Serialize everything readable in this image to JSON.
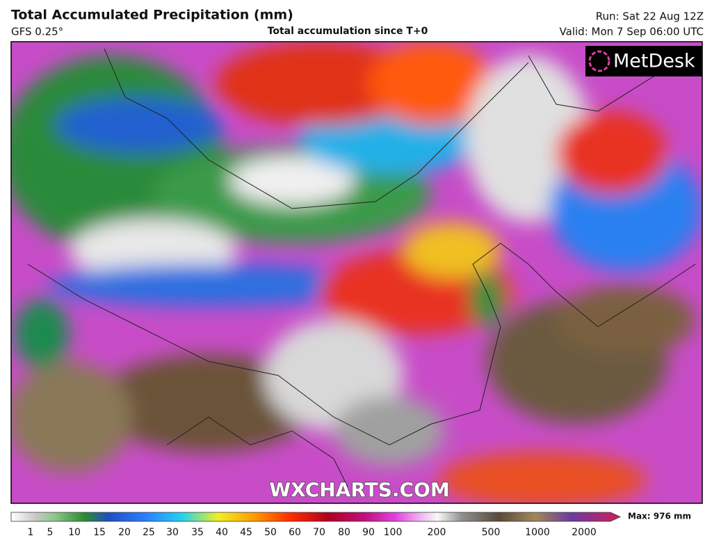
{
  "header": {
    "title": "Total Accumulated Precipitation (mm)",
    "model": "GFS 0.25°",
    "subtitle": "Total accumulation since T+0",
    "run": "Run: Sat 22 Aug 12Z",
    "valid": "Valid: Mon 7 Sep 06:00 UTC"
  },
  "logo": "MetDesk",
  "watermark": "WXCHARTS.COM",
  "colorbar": {
    "ticks": [
      1,
      5,
      10,
      15,
      20,
      25,
      30,
      35,
      40,
      45,
      50,
      60,
      70,
      80,
      90,
      100,
      200,
      500,
      1000,
      2000
    ],
    "max_label": "Max: 976 mm"
  }
}
